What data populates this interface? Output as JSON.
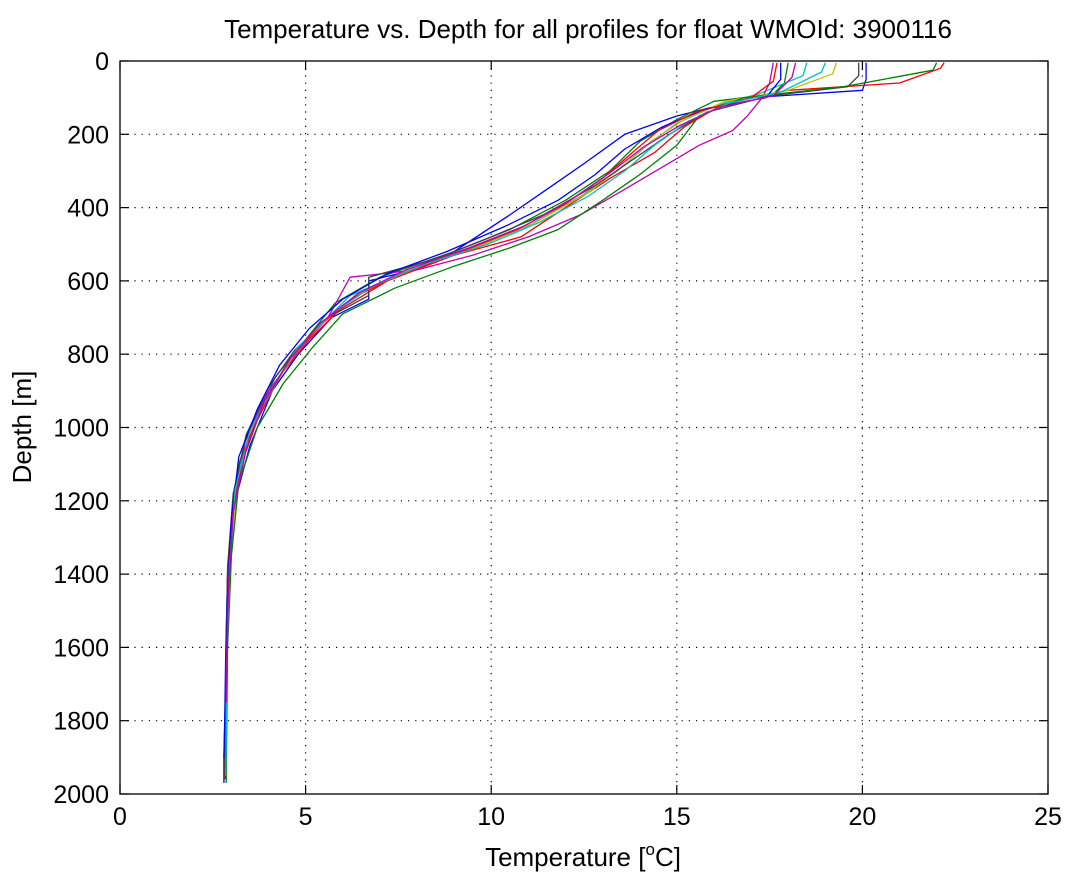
{
  "chart_data": {
    "type": "line",
    "title": "Temperature vs. Depth for all profiles for float WMOId: 3900116",
    "xlabel": "Temperature [°C]",
    "xlabel_main": "Temperature [",
    "xlabel_sup": "o",
    "xlabel_end": "C]",
    "ylabel": "Depth [m]",
    "xlim": [
      0,
      25
    ],
    "ylim": [
      0,
      2000
    ],
    "y_reversed": true,
    "grid": true,
    "x_ticks": [
      0,
      5,
      10,
      15,
      20,
      25
    ],
    "y_ticks": [
      0,
      200,
      400,
      600,
      800,
      1000,
      1200,
      1400,
      1600,
      1800,
      2000
    ],
    "x_tick_labels": [
      "0",
      "5",
      "10",
      "15",
      "20",
      "25"
    ],
    "y_tick_labels": [
      "0",
      "200",
      "400",
      "600",
      "800",
      "1000",
      "1200",
      "1400",
      "1600",
      "1800",
      "2000"
    ],
    "series_colors": [
      "#0000ff",
      "#008000",
      "#ff0000",
      "#00bfbf",
      "#bf00bf",
      "#bfbf00",
      "#404040"
    ],
    "series": [
      {
        "color": "#0000ff",
        "x": [
          20.1,
          20.1,
          20.0,
          17.0,
          15.0,
          13.6,
          12.5,
          11.5,
          10.5,
          9.0,
          7.5,
          6.7,
          6.7,
          5.7,
          4.8,
          4.1,
          3.5,
          3.1,
          2.9,
          2.85,
          2.82,
          2.8,
          2.8
        ],
        "y": [
          5,
          50,
          80,
          100,
          150,
          200,
          280,
          350,
          420,
          520,
          580,
          600,
          650,
          700,
          800,
          900,
          1050,
          1200,
          1400,
          1600,
          1800,
          1900,
          1970
        ]
      },
      {
        "color": "#008000",
        "x": [
          18.0,
          17.9,
          17.6,
          16.0,
          15.0,
          14.0,
          13.2,
          12.0,
          10.5,
          9.0,
          7.0,
          5.8,
          5.0,
          4.2,
          3.6,
          3.2,
          3.0,
          2.9,
          2.85,
          2.85
        ],
        "y": [
          5,
          60,
          90,
          110,
          160,
          220,
          300,
          380,
          460,
          520,
          590,
          660,
          760,
          860,
          980,
          1100,
          1300,
          1500,
          1750,
          1960
        ]
      },
      {
        "color": "#ff0000",
        "x": [
          22.2,
          22.1,
          21.0,
          18.0,
          16.2,
          15.2,
          14.4,
          13.2,
          12.0,
          10.8,
          9.0,
          7.2,
          5.9,
          5.1,
          4.3,
          3.7,
          3.2,
          3.0,
          2.9,
          2.87,
          2.85
        ],
        "y": [
          5,
          20,
          60,
          80,
          120,
          180,
          250,
          320,
          400,
          480,
          530,
          600,
          680,
          760,
          860,
          980,
          1120,
          1300,
          1500,
          1750,
          1870
        ]
      },
      {
        "color": "#00bfbf",
        "x": [
          18.5,
          18.4,
          17.2,
          16.1,
          15.0,
          14.2,
          13.4,
          12.4,
          11.0,
          9.5,
          7.8,
          6.2,
          5.3,
          4.5,
          3.8,
          3.3,
          3.0,
          2.9,
          2.85,
          2.83
        ],
        "y": [
          5,
          40,
          90,
          120,
          170,
          230,
          300,
          370,
          450,
          510,
          570,
          640,
          730,
          830,
          950,
          1080,
          1250,
          1450,
          1700,
          1950
        ]
      },
      {
        "color": "#bf00bf",
        "x": [
          17.6,
          17.5,
          17.3,
          16.9,
          16.5,
          15.6,
          14.6,
          13.6,
          12.4,
          11.0,
          9.5,
          8.0,
          6.2,
          5.6,
          4.8,
          4.0,
          3.4,
          3.1,
          2.9,
          2.85,
          2.82
        ],
        "y": [
          5,
          60,
          100,
          150,
          190,
          230,
          290,
          350,
          420,
          480,
          530,
          570,
          590,
          700,
          790,
          900,
          1030,
          1200,
          1400,
          1700,
          1950
        ]
      },
      {
        "color": "#bfbf00",
        "x": [
          19.3,
          19.2,
          18.0,
          16.3,
          15.2,
          14.3,
          13.5,
          12.6,
          11.2,
          9.8,
          8.0,
          6.5,
          5.5,
          4.7,
          4.0,
          3.4,
          3.1,
          2.95,
          2.88,
          2.85
        ],
        "y": [
          5,
          35,
          80,
          110,
          160,
          220,
          290,
          360,
          440,
          500,
          560,
          630,
          710,
          800,
          910,
          1040,
          1200,
          1400,
          1650,
          1960
        ]
      },
      {
        "color": "#404040",
        "x": [
          19.9,
          19.9,
          19.6,
          17.5,
          15.8,
          14.8,
          13.8,
          12.8,
          11.4,
          10.0,
          8.5,
          6.7,
          6.7,
          5.6,
          4.7,
          4.0,
          3.4,
          3.05,
          2.9,
          2.85,
          2.82
        ],
        "y": [
          5,
          40,
          70,
          95,
          140,
          200,
          270,
          340,
          420,
          480,
          540,
          590,
          640,
          700,
          790,
          890,
          1020,
          1180,
          1380,
          1650,
          1960
        ]
      },
      {
        "color": "#008000",
        "x": [
          22.0,
          21.9,
          19.5,
          16.8,
          15.6,
          15.0,
          14.0,
          13.0,
          11.8,
          10.5,
          9.0,
          7.4,
          6.0,
          5.2,
          4.4,
          3.7,
          3.2,
          3.0,
          2.9,
          2.86
        ],
        "y": [
          5,
          25,
          70,
          100,
          150,
          230,
          310,
          380,
          460,
          510,
          560,
          620,
          690,
          780,
          880,
          1000,
          1150,
          1350,
          1600,
          1970
        ]
      },
      {
        "color": "#0000ff",
        "x": [
          17.8,
          17.8,
          17.4,
          15.8,
          14.6,
          13.6,
          12.8,
          11.8,
          10.4,
          8.8,
          7.2,
          6.0,
          5.1,
          4.3,
          3.7,
          3.2,
          3.0,
          2.9,
          2.85,
          2.8
        ],
        "y": [
          5,
          50,
          100,
          130,
          180,
          240,
          310,
          380,
          450,
          520,
          580,
          650,
          730,
          830,
          950,
          1080,
          1250,
          1450,
          1700,
          1900
        ]
      },
      {
        "color": "#ff0000",
        "x": [
          17.7,
          17.6,
          17.0,
          15.5,
          14.5,
          13.8,
          13.0,
          12.0,
          10.7,
          9.2,
          7.6,
          6.3,
          5.4,
          4.6,
          3.9,
          3.35,
          3.05,
          2.92,
          2.86,
          2.84
        ],
        "y": [
          5,
          55,
          100,
          140,
          190,
          250,
          320,
          390,
          460,
          520,
          580,
          645,
          720,
          810,
          930,
          1060,
          1230,
          1430,
          1700,
          1960
        ]
      },
      {
        "color": "#00bfbf",
        "x": [
          19.0,
          18.9,
          17.8,
          16.4,
          15.3,
          14.4,
          13.6,
          12.6,
          11.3,
          9.9,
          8.2,
          6.8,
          5.7,
          4.8,
          4.1,
          3.5,
          3.1,
          2.95,
          2.88,
          2.85
        ],
        "y": [
          5,
          30,
          85,
          115,
          165,
          230,
          300,
          370,
          440,
          500,
          555,
          615,
          690,
          780,
          890,
          1010,
          1170,
          1380,
          1650,
          1950
        ]
      },
      {
        "color": "#bf00bf",
        "x": [
          18.2,
          18.1,
          17.6,
          16.2,
          15.1,
          14.1,
          13.2,
          12.2,
          10.9,
          9.4,
          7.7,
          6.4,
          5.4,
          4.6,
          3.9,
          3.4,
          3.05,
          2.92,
          2.86
        ],
        "y": [
          5,
          45,
          95,
          125,
          175,
          235,
          305,
          375,
          450,
          510,
          570,
          635,
          715,
          810,
          925,
          1060,
          1230,
          1450,
          1750
        ]
      }
    ]
  }
}
